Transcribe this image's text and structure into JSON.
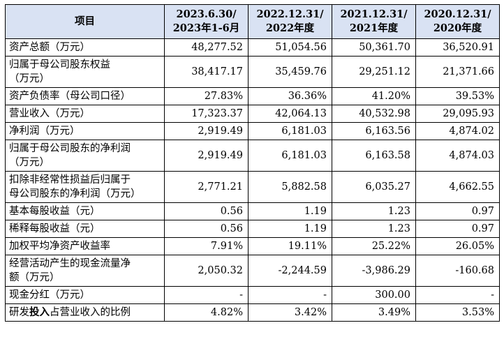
{
  "headers": [
    "项目",
    "2023.6.30/\n2023年1-6月",
    "2022.12.31/\n2022年度",
    "2021.12.31/\n2021年度",
    "2020.12.31/\n2020年度"
  ],
  "rows": [
    {
      "label": "资产总额（万元）",
      "values": [
        "48,277.52",
        "51,054.56",
        "50,361.70",
        "36,520.91"
      ]
    },
    {
      "label": "归属于母公司股东权益\n（万元）",
      "values": [
        "38,417.17",
        "35,459.76",
        "29,251.12",
        "21,371.66"
      ]
    },
    {
      "label": "资产负债率（母公司口径）",
      "values": [
        "27.83%",
        "36.36%",
        "41.20%",
        "39.53%"
      ]
    },
    {
      "label": "营业收入（万元）",
      "values": [
        "17,323.37",
        "42,064.13",
        "40,532.98",
        "29,095.93"
      ]
    },
    {
      "label": "净利润（万元）",
      "values": [
        "2,919.49",
        "6,181.03",
        "6,163.56",
        "4,874.02"
      ]
    },
    {
      "label": "归属于母公司股东的净利润\n（万元）",
      "values": [
        "2,919.49",
        "6,181.03",
        "6,163.58",
        "4,874.03"
      ]
    },
    {
      "label": "扣除非经常性损益后归属于\n母公司股东的净利润（万元）",
      "values": [
        "2,771.21",
        "5,882.58",
        "6,035.27",
        "4,662.55"
      ]
    },
    {
      "label": "基本每股收益（元）",
      "values": [
        "0.56",
        "1.19",
        "1.23",
        "0.97"
      ]
    },
    {
      "label": "稀释每股收益（元）",
      "values": [
        "0.56",
        "1.19",
        "1.23",
        "0.97"
      ]
    },
    {
      "label": "加权平均净资产收益率",
      "values": [
        "7.91%",
        "19.11%",
        "25.22%",
        "26.05%"
      ]
    },
    {
      "label": "经营活动产生的现金流量净\n额（万元）",
      "values": [
        "2,050.32",
        "-2,244.59",
        "-3,986.29",
        "-160.68"
      ]
    },
    {
      "label": "现金分红（万元）",
      "values": [
        "-",
        "-",
        "300.00",
        "-"
      ]
    },
    {
      "label_parts": [
        "研发",
        "投入",
        "占营业收入的比例"
      ],
      "values": [
        "4.82%",
        "3.42%",
        "3.49%",
        "3.53%"
      ]
    }
  ]
}
